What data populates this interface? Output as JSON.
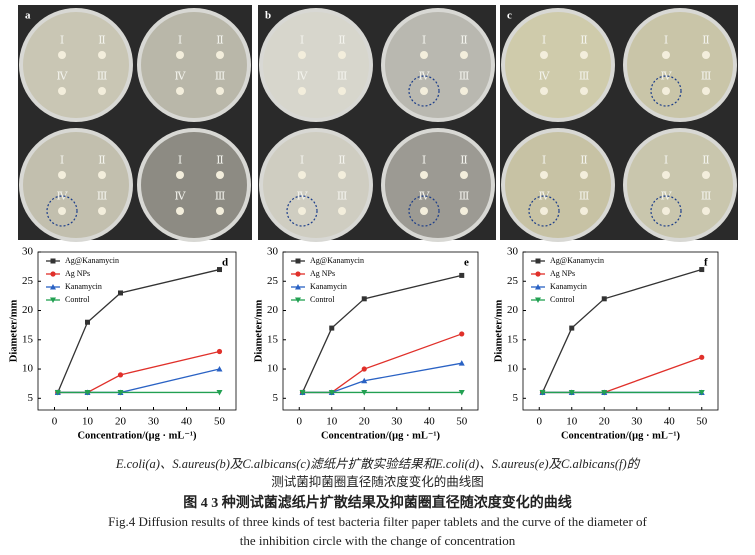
{
  "photos": [
    {
      "label": "a",
      "tints": [
        "#c9c6b4",
        "#b9b7a9",
        "#c2bfae",
        "#8d8b83"
      ]
    },
    {
      "label": "b",
      "tints": [
        "#d7d6cc",
        "#b9b8b0",
        "#cfcdc1",
        "#9c9a93"
      ]
    },
    {
      "label": "c",
      "tints": [
        "#cfcbab",
        "#c9c5a8",
        "#c7c2a4",
        "#c9c6ad"
      ]
    }
  ],
  "disc_labels": [
    "Ⅰ",
    "Ⅱ",
    "Ⅲ",
    "Ⅳ"
  ],
  "chart_data": [
    {
      "type": "line",
      "panel": "d",
      "x_label": "Concentration/(μg · mL⁻¹)",
      "y_label": "Diameter/mm",
      "x": [
        1,
        10,
        20,
        50
      ],
      "xlim": [
        -5,
        55
      ],
      "xticks": [
        0,
        10,
        20,
        30,
        40,
        50
      ],
      "ylim": [
        3,
        30
      ],
      "yticks": [
        5,
        10,
        15,
        20,
        25,
        30
      ],
      "legend": "upper left",
      "series": [
        {
          "name": "Ag@Kanamycin",
          "color": "#333333",
          "marker": "square",
          "values": [
            6,
            18,
            23,
            27
          ]
        },
        {
          "name": "Ag NPs",
          "color": "#e0302a",
          "marker": "circle",
          "values": [
            6,
            6,
            9,
            13
          ]
        },
        {
          "name": "Kanamycin",
          "color": "#2a62c4",
          "marker": "triangle",
          "values": [
            6,
            6,
            6,
            10
          ]
        },
        {
          "name": "Control",
          "color": "#22a052",
          "marker": "triangle-down",
          "values": [
            6,
            6,
            6,
            6
          ]
        }
      ]
    },
    {
      "type": "line",
      "panel": "e",
      "x_label": "Concentration/(μg · mL⁻¹)",
      "y_label": "Diameter/mm",
      "x": [
        1,
        10,
        20,
        50
      ],
      "xlim": [
        -5,
        55
      ],
      "xticks": [
        0,
        10,
        20,
        30,
        40,
        50
      ],
      "ylim": [
        3,
        30
      ],
      "yticks": [
        5,
        10,
        15,
        20,
        25,
        30
      ],
      "legend": "upper left",
      "series": [
        {
          "name": "Ag@Kanamycin",
          "color": "#333333",
          "marker": "square",
          "values": [
            6,
            17,
            22,
            26
          ]
        },
        {
          "name": "Ag NPs",
          "color": "#e0302a",
          "marker": "circle",
          "values": [
            6,
            6,
            10,
            16
          ]
        },
        {
          "name": "Kanamycin",
          "color": "#2a62c4",
          "marker": "triangle",
          "values": [
            6,
            6,
            8,
            11
          ]
        },
        {
          "name": "Control",
          "color": "#22a052",
          "marker": "triangle-down",
          "values": [
            6,
            6,
            6,
            6
          ]
        }
      ]
    },
    {
      "type": "line",
      "panel": "f",
      "x_label": "Concentration/(μg · mL⁻¹)",
      "y_label": "Diameter/mm",
      "x": [
        1,
        10,
        20,
        50
      ],
      "xlim": [
        -5,
        55
      ],
      "xticks": [
        0,
        10,
        20,
        30,
        40,
        50
      ],
      "ylim": [
        3,
        30
      ],
      "yticks": [
        5,
        10,
        15,
        20,
        25,
        30
      ],
      "legend": "upper left",
      "series": [
        {
          "name": "Ag@Kanamycin",
          "color": "#333333",
          "marker": "square",
          "values": [
            6,
            17,
            22,
            27
          ]
        },
        {
          "name": "Ag NPs",
          "color": "#e0302a",
          "marker": "circle",
          "values": [
            6,
            6,
            6,
            12
          ]
        },
        {
          "name": "Kanamycin",
          "color": "#2a62c4",
          "marker": "triangle",
          "values": [
            6,
            6,
            6,
            6
          ]
        },
        {
          "name": "Control",
          "color": "#22a052",
          "marker": "triangle-down",
          "values": [
            6,
            6,
            6,
            6
          ]
        }
      ]
    }
  ],
  "caption": {
    "line1": "E.coli(a)、S.aureus(b)及C.albicans(c)滤纸片扩散实验结果和E.coli(d)、S.aureus(e)及C.albicans(f)的",
    "line2": "测试菌抑菌圈直径随浓度变化的曲线图",
    "title_cn": "图 4   3 种测试菌滤纸片扩散结果及抑菌圈直径随浓度变化的曲线",
    "title_en_1": "Fig.4   Diffusion results of three kinds of test bacteria filter paper tablets and the curve of the diameter of",
    "title_en_2": "the inhibition circle with the change of concentration"
  }
}
